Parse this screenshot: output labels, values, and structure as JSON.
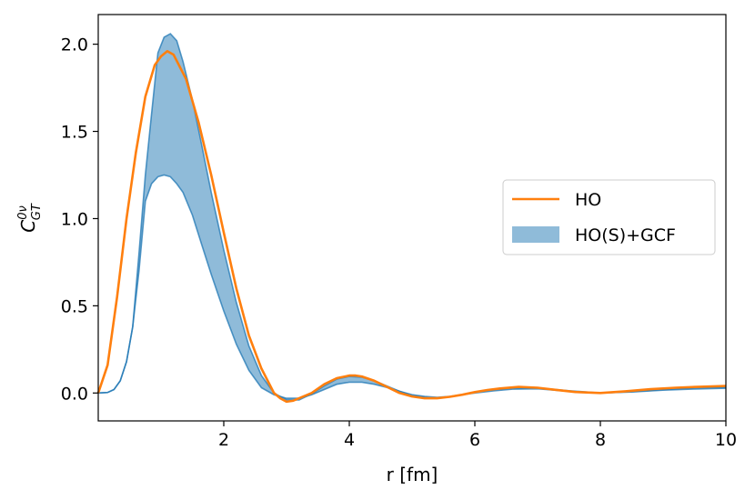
{
  "chart_data": {
    "type": "line",
    "xlabel": "r [fm]",
    "ylabel_main": "C",
    "ylabel_sup": "0ν",
    "ylabel_sub": "GT",
    "xlim": [
      0,
      10
    ],
    "ylim": [
      -0.16,
      2.17
    ],
    "x_ticks": [
      2,
      4,
      6,
      8,
      10
    ],
    "x_tick_labels": [
      "2",
      "4",
      "6",
      "8",
      "10"
    ],
    "y_ticks": [
      0.0,
      0.5,
      1.0,
      1.5,
      2.0
    ],
    "y_tick_labels": [
      "0.0",
      "0.5",
      "1.0",
      "1.5",
      "2.0"
    ],
    "legend_position": "center-right",
    "series": [
      {
        "name": "HO",
        "kind": "line",
        "color": "#ff7f0e",
        "x": [
          0.0,
          0.15,
          0.3,
          0.45,
          0.6,
          0.75,
          0.9,
          1.0,
          1.1,
          1.2,
          1.4,
          1.6,
          1.8,
          2.0,
          2.2,
          2.4,
          2.6,
          2.8,
          2.9,
          3.0,
          3.1,
          3.2,
          3.4,
          3.6,
          3.8,
          4.0,
          4.1,
          4.2,
          4.4,
          4.6,
          4.8,
          5.0,
          5.2,
          5.4,
          5.6,
          5.8,
          6.0,
          6.2,
          6.4,
          6.7,
          7.0,
          7.3,
          7.6,
          8.0,
          8.4,
          8.8,
          9.2,
          9.6,
          10.0
        ],
        "y": [
          0.0,
          0.16,
          0.55,
          1.0,
          1.38,
          1.7,
          1.88,
          1.93,
          1.96,
          1.94,
          1.8,
          1.55,
          1.25,
          0.92,
          0.6,
          0.33,
          0.14,
          0.0,
          -0.03,
          -0.05,
          -0.045,
          -0.03,
          0.0,
          0.05,
          0.085,
          0.1,
          0.1,
          0.095,
          0.07,
          0.035,
          0.0,
          -0.02,
          -0.03,
          -0.03,
          -0.022,
          -0.01,
          0.005,
          0.017,
          0.026,
          0.035,
          0.03,
          0.018,
          0.006,
          0.0,
          0.01,
          0.022,
          0.03,
          0.036,
          0.04
        ]
      },
      {
        "name": "HO(S)+GCF",
        "kind": "band",
        "color": "#1f77b4",
        "x": [
          0.0,
          0.15,
          0.25,
          0.35,
          0.45,
          0.55,
          0.65,
          0.75,
          0.85,
          0.95,
          1.05,
          1.15,
          1.25,
          1.35,
          1.5,
          1.65,
          1.8,
          2.0,
          2.2,
          2.4,
          2.6,
          2.8,
          3.0,
          3.2,
          3.4,
          3.6,
          3.8,
          4.0,
          4.2,
          4.4,
          4.6,
          4.8,
          5.0,
          5.2,
          5.4,
          5.6,
          5.8,
          6.0,
          6.3,
          6.6,
          7.0,
          7.5,
          8.0,
          8.5,
          9.0,
          9.5,
          10.0
        ],
        "y_low": [
          0.0,
          0.003,
          0.02,
          0.07,
          0.18,
          0.38,
          0.7,
          1.1,
          1.2,
          1.24,
          1.25,
          1.24,
          1.2,
          1.15,
          1.02,
          0.85,
          0.68,
          0.47,
          0.28,
          0.13,
          0.03,
          -0.01,
          -0.03,
          -0.03,
          -0.01,
          0.02,
          0.05,
          0.062,
          0.062,
          0.05,
          0.032,
          0.01,
          -0.01,
          -0.02,
          -0.025,
          -0.02,
          -0.01,
          0.0,
          0.012,
          0.022,
          0.024,
          0.01,
          0.0,
          0.006,
          0.016,
          0.023,
          0.027
        ],
        "y_high": [
          0.0,
          0.003,
          0.02,
          0.07,
          0.18,
          0.38,
          0.8,
          1.25,
          1.6,
          1.95,
          2.04,
          2.06,
          2.02,
          1.9,
          1.68,
          1.42,
          1.15,
          0.82,
          0.52,
          0.27,
          0.1,
          0.0,
          -0.04,
          -0.04,
          -0.005,
          0.04,
          0.08,
          0.095,
          0.09,
          0.07,
          0.04,
          0.01,
          -0.015,
          -0.025,
          -0.03,
          -0.022,
          -0.01,
          0.005,
          0.02,
          0.03,
          0.029,
          0.013,
          0.0,
          0.008,
          0.02,
          0.03,
          0.034
        ]
      }
    ]
  }
}
